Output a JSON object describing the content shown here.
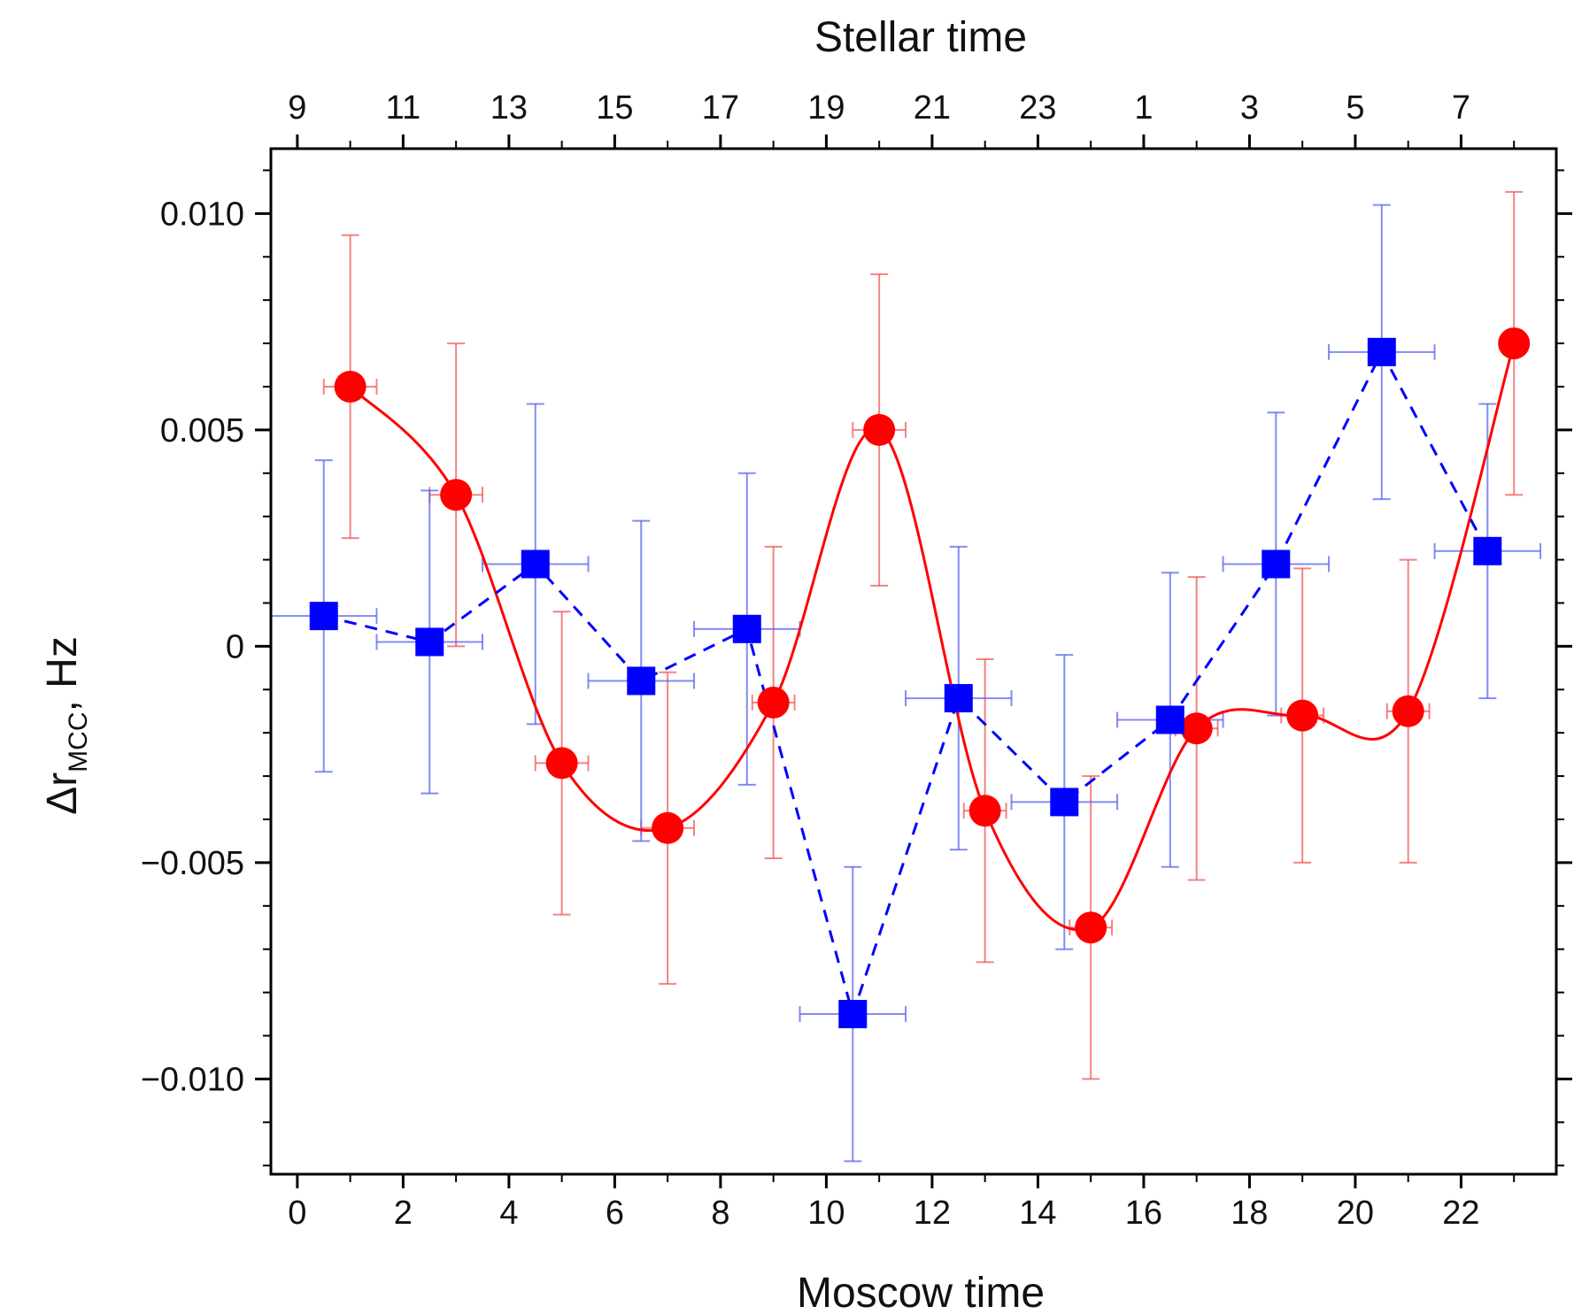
{
  "chart_data": {
    "type": "scatter",
    "title": "",
    "xlabel": "Moscow time",
    "x2label": "Stellar time",
    "ylabel_main": "Δr",
    "ylabel_sub": "MCC",
    "ylabel_unit": ", Hz",
    "xlim": [
      -0.5,
      23.8
    ],
    "ylim": [
      -0.0122,
      0.0115
    ],
    "x_ticks": [
      0,
      2,
      4,
      6,
      8,
      10,
      12,
      14,
      16,
      18,
      20,
      22
    ],
    "x_tick_labels": [
      "0",
      "2",
      "4",
      "6",
      "8",
      "10",
      "12",
      "14",
      "16",
      "18",
      "20",
      "22"
    ],
    "x2_tick_positions": [
      0,
      2,
      4,
      6,
      8,
      10,
      12,
      14,
      16,
      18,
      20,
      22
    ],
    "x2_tick_labels": [
      "9",
      "11",
      "13",
      "15",
      "17",
      "19",
      "21",
      "23",
      "1",
      "3",
      "5",
      "7"
    ],
    "y_ticks": [
      0.01,
      0.005,
      0,
      -0.005,
      -0.01
    ],
    "y_tick_labels": [
      "0.010",
      "0.005",
      "0",
      "−0.005",
      "−0.010"
    ],
    "grid": false,
    "series": [
      {
        "name": "circles",
        "color": "#ff0000",
        "marker": "circle",
        "line": "solid-smooth",
        "x": [
          1,
          3,
          5,
          7,
          9,
          11,
          13,
          15,
          17,
          19,
          21,
          23
        ],
        "y": [
          0.006,
          0.0035,
          -0.0027,
          -0.0042,
          -0.0013,
          0.005,
          -0.0038,
          -0.0065,
          -0.0019,
          -0.0016,
          -0.0015,
          0.007
        ],
        "yerr": [
          0.0035,
          0.0035,
          0.0035,
          0.0036,
          0.0036,
          0.0036,
          0.0035,
          0.0035,
          0.0035,
          0.0034,
          0.0035,
          0.0035
        ],
        "xerr": [
          0.5,
          0.5,
          0.5,
          0.5,
          0.4,
          0.5,
          0.4,
          0.4,
          0.4,
          0.4,
          0.4,
          0.2
        ]
      },
      {
        "name": "squares",
        "color": "#0000ff",
        "marker": "square",
        "line": "dashed",
        "x": [
          0.5,
          2.5,
          4.5,
          6.5,
          8.5,
          10.5,
          12.5,
          14.5,
          16.5,
          18.5,
          20.5,
          22.5
        ],
        "y": [
          0.0007,
          0.0001,
          0.0019,
          -0.0008,
          0.0004,
          -0.0085,
          -0.0012,
          -0.0036,
          -0.0017,
          0.0019,
          0.0068,
          0.0022
        ],
        "yerr": [
          0.0036,
          0.0035,
          0.0037,
          0.0037,
          0.0036,
          0.0034,
          0.0035,
          0.0034,
          0.0034,
          0.0035,
          0.0034,
          0.0034
        ],
        "xerr": [
          1.0,
          1.0,
          1.0,
          1.0,
          1.0,
          1.0,
          1.0,
          1.0,
          1.0,
          1.0,
          1.0,
          1.0
        ]
      }
    ]
  }
}
